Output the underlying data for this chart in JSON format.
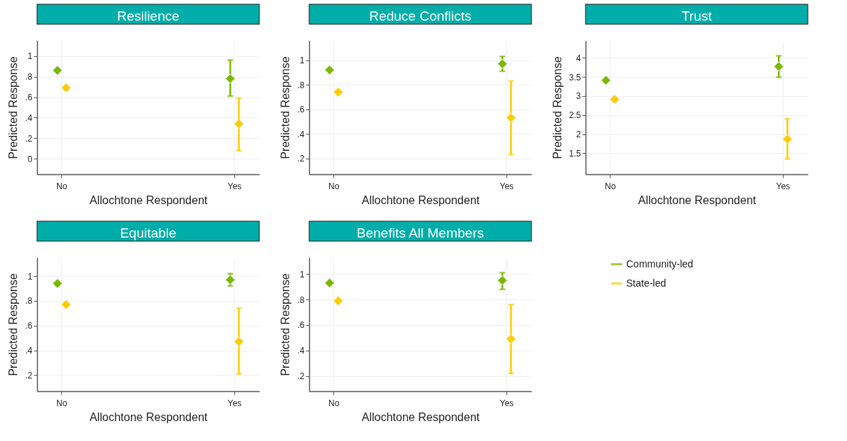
{
  "chart_data": [
    {
      "type": "scatter",
      "title": "Resilience",
      "xlabel": "Allochtone Respondent",
      "ylabel": "Predicted Response",
      "categories": [
        "No",
        "Yes"
      ],
      "ylim": [
        -0.15,
        1.15
      ],
      "yticks": [
        0,
        {
          "value": 0.2,
          "label": ".2"
        },
        {
          "value": 0.4,
          "label": ".4"
        },
        {
          "value": 0.6,
          "label": ".6"
        },
        {
          "value": 0.8,
          "label": ".8"
        },
        1
      ],
      "grid": true,
      "marker": "diamond",
      "series": [
        {
          "color": "#7ab800",
          "values": [
            0.86,
            0.78
          ],
          "errors": [
            null,
            [
              0.61,
              0.96
            ]
          ]
        },
        {
          "color": "#ffcc00",
          "values": [
            0.69,
            0.34
          ],
          "errors": [
            null,
            [
              0.08,
              0.59
            ]
          ]
        }
      ]
    },
    {
      "type": "scatter",
      "title": "Reduce Conflicts",
      "xlabel": "Allochtone Respondent",
      "ylabel": "Predicted Response",
      "categories": [
        "No",
        "Yes"
      ],
      "ylim": [
        0.07,
        1.16
      ],
      "yticks": [
        {
          "value": 0.2,
          "label": ".2"
        },
        {
          "value": 0.4,
          "label": ".4"
        },
        {
          "value": 0.6,
          "label": ".6"
        },
        {
          "value": 0.8,
          "label": ".8"
        },
        1
      ],
      "grid": true,
      "marker": "diamond",
      "series": [
        {
          "color": "#7ab800",
          "values": [
            0.92,
            0.97
          ],
          "errors": [
            null,
            [
              0.91,
              1.03
            ]
          ]
        },
        {
          "color": "#ffcc00",
          "values": [
            0.74,
            0.53
          ],
          "errors": [
            null,
            [
              0.23,
              0.83
            ]
          ]
        }
      ]
    },
    {
      "type": "scatter",
      "title": "Trust",
      "xlabel": "Allochtone Respondent",
      "ylabel": "Predicted Response",
      "categories": [
        "No",
        "Yes"
      ],
      "ylim": [
        0.95,
        4.45
      ],
      "yticks": [
        1.5,
        2,
        2.5,
        3,
        3.5,
        4
      ],
      "grid": true,
      "marker": "diamond",
      "series": [
        {
          "color": "#7ab800",
          "values": [
            3.41,
            3.77
          ],
          "errors": [
            null,
            [
              3.49,
              4.05
            ]
          ]
        },
        {
          "color": "#ffcc00",
          "values": [
            2.91,
            1.87
          ],
          "errors": [
            null,
            [
              1.35,
              2.4
            ]
          ]
        }
      ]
    },
    {
      "type": "scatter",
      "title": "Equitable",
      "xlabel": "Allochtone Respondent",
      "ylabel": "Predicted Response",
      "categories": [
        "No",
        "Yes"
      ],
      "ylim": [
        0.07,
        1.15
      ],
      "yticks": [
        {
          "value": 0.2,
          "label": ".2"
        },
        {
          "value": 0.4,
          "label": ".4"
        },
        {
          "value": 0.6,
          "label": ".6"
        },
        {
          "value": 0.8,
          "label": ".8"
        },
        1
      ],
      "grid": true,
      "marker": "diamond",
      "series": [
        {
          "color": "#7ab800",
          "values": [
            0.94,
            0.97
          ],
          "errors": [
            null,
            [
              0.92,
              1.02
            ]
          ]
        },
        {
          "color": "#ffcc00",
          "values": [
            0.77,
            0.47
          ],
          "errors": [
            null,
            [
              0.21,
              0.74
            ]
          ]
        }
      ]
    },
    {
      "type": "scatter",
      "title": "Benefits All Members",
      "xlabel": "Allochtone Respondent",
      "ylabel": "Predicted Response",
      "categories": [
        "No",
        "Yes"
      ],
      "ylim": [
        0.08,
        1.13
      ],
      "yticks": [
        {
          "value": 0.2,
          "label": ".2"
        },
        {
          "value": 0.4,
          "label": ".4"
        },
        {
          "value": 0.6,
          "label": ".6"
        },
        {
          "value": 0.8,
          "label": ".8"
        },
        1
      ],
      "grid": true,
      "marker": "diamond",
      "legend": "right",
      "series": [
        {
          "name": "Community-led",
          "color": "#7ab800",
          "values": [
            0.93,
            0.95
          ],
          "errors": [
            null,
            [
              0.88,
              1.01
            ]
          ]
        },
        {
          "name": "State-led",
          "color": "#ffcc00",
          "values": [
            0.79,
            0.49
          ],
          "errors": [
            null,
            [
              0.22,
              0.76
            ]
          ]
        }
      ]
    }
  ]
}
